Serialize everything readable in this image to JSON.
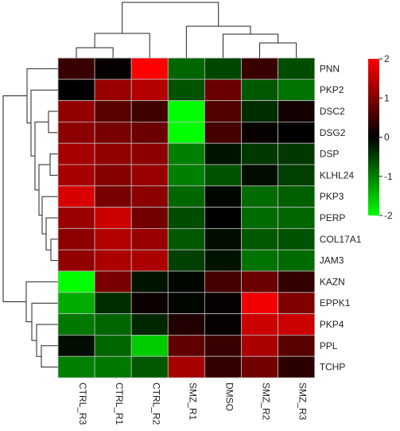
{
  "chart_data": {
    "type": "heatmap",
    "title": "",
    "columns": [
      "CTRL_R3",
      "CTRL_R1",
      "CTRL_R2",
      "SMZ_R1",
      "DMSO",
      "SMZ_R2",
      "SMZ_R3"
    ],
    "rows": [
      "PNN",
      "PKP2",
      "DSC2",
      "DSG2",
      "DSP",
      "KLHL24",
      "PKP3",
      "PERP",
      "COL17A1",
      "JAM3",
      "KAZN",
      "EPPK1",
      "PKP4",
      "PPL",
      "TCHP"
    ],
    "values": [
      [
        0.45,
        0.05,
        2.0,
        -0.8,
        -0.55,
        0.45,
        -0.6
      ],
      [
        0.0,
        1.2,
        1.4,
        -0.65,
        0.85,
        -0.7,
        -0.9
      ],
      [
        1.15,
        0.7,
        0.5,
        -2.0,
        0.65,
        -0.35,
        0.15
      ],
      [
        1.1,
        0.95,
        0.85,
        -2.0,
        0.55,
        0.05,
        0.0
      ],
      [
        1.3,
        1.15,
        1.1,
        -1.0,
        -0.15,
        -0.45,
        -0.45
      ],
      [
        1.3,
        1.05,
        1.2,
        -1.0,
        -0.65,
        -0.1,
        -0.5
      ],
      [
        1.7,
        0.95,
        1.1,
        -0.8,
        -0.05,
        -0.85,
        -0.75
      ],
      [
        1.2,
        1.6,
        0.9,
        -0.6,
        0.0,
        -0.85,
        -0.8
      ],
      [
        1.1,
        1.4,
        1.2,
        -0.7,
        -0.1,
        -0.7,
        -0.65
      ],
      [
        1.15,
        1.35,
        1.35,
        -0.5,
        -0.15,
        -0.9,
        -0.85
      ],
      [
        -2.0,
        0.95,
        -0.15,
        -0.05,
        0.55,
        0.85,
        0.4
      ],
      [
        -1.35,
        -0.35,
        0.1,
        -0.05,
        0.05,
        1.9,
        1.0
      ],
      [
        -0.95,
        -0.8,
        -0.3,
        0.25,
        0.05,
        1.6,
        1.6
      ],
      [
        -0.1,
        -0.8,
        -1.6,
        0.75,
        0.45,
        1.35,
        0.7
      ],
      [
        -1.0,
        -0.95,
        -0.7,
        1.3,
        0.4,
        0.9,
        0.35
      ]
    ],
    "color_scale": {
      "min": -2,
      "mid": 0,
      "max": 2,
      "low_color": "#00ff00",
      "mid_color": "#000000",
      "high_color": "#ff0000",
      "ticks": [
        2,
        1,
        0,
        -1,
        -2
      ]
    },
    "grid": true,
    "legend_position": "right"
  }
}
